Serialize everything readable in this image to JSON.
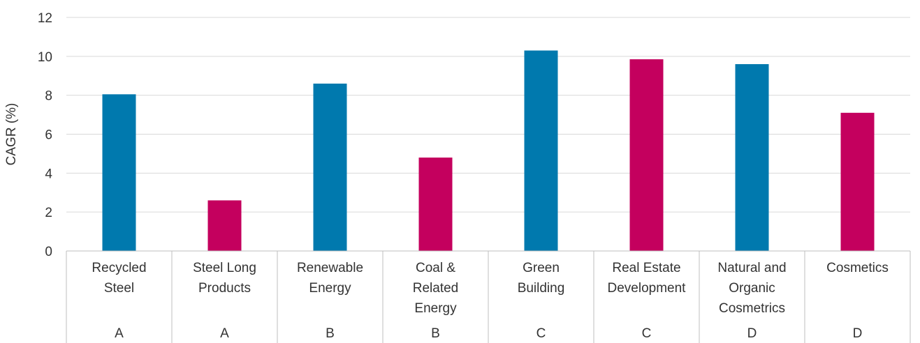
{
  "chart_data": {
    "type": "bar",
    "ylabel": "CAGR (%)",
    "xlabel": "",
    "ylim": [
      0,
      12
    ],
    "yticks": [
      0,
      2,
      4,
      6,
      8,
      10,
      12
    ],
    "grid": true,
    "categories": [
      {
        "label": [
          "Recycled",
          "Steel"
        ],
        "group": "A",
        "value": 8.05,
        "color": "#0079AE"
      },
      {
        "label": [
          "Steel Long",
          "Products"
        ],
        "group": "A",
        "value": 2.6,
        "color": "#C4005E"
      },
      {
        "label": [
          "Renewable",
          "Energy"
        ],
        "group": "B",
        "value": 8.6,
        "color": "#0079AE"
      },
      {
        "label": [
          "Coal &",
          "Related",
          "Energy"
        ],
        "group": "B",
        "value": 4.8,
        "color": "#C4005E"
      },
      {
        "label": [
          "Green",
          "Building"
        ],
        "group": "C",
        "value": 10.3,
        "color": "#0079AE"
      },
      {
        "label": [
          "Real Estate",
          "Development"
        ],
        "group": "C",
        "value": 9.85,
        "color": "#C4005E"
      },
      {
        "label": [
          "Natural and",
          "Organic",
          "Cosmetrics"
        ],
        "group": "D",
        "value": 9.6,
        "color": "#0079AE"
      },
      {
        "label": [
          "Cosmetics"
        ],
        "group": "D",
        "value": 7.1,
        "color": "#C4005E"
      }
    ]
  }
}
